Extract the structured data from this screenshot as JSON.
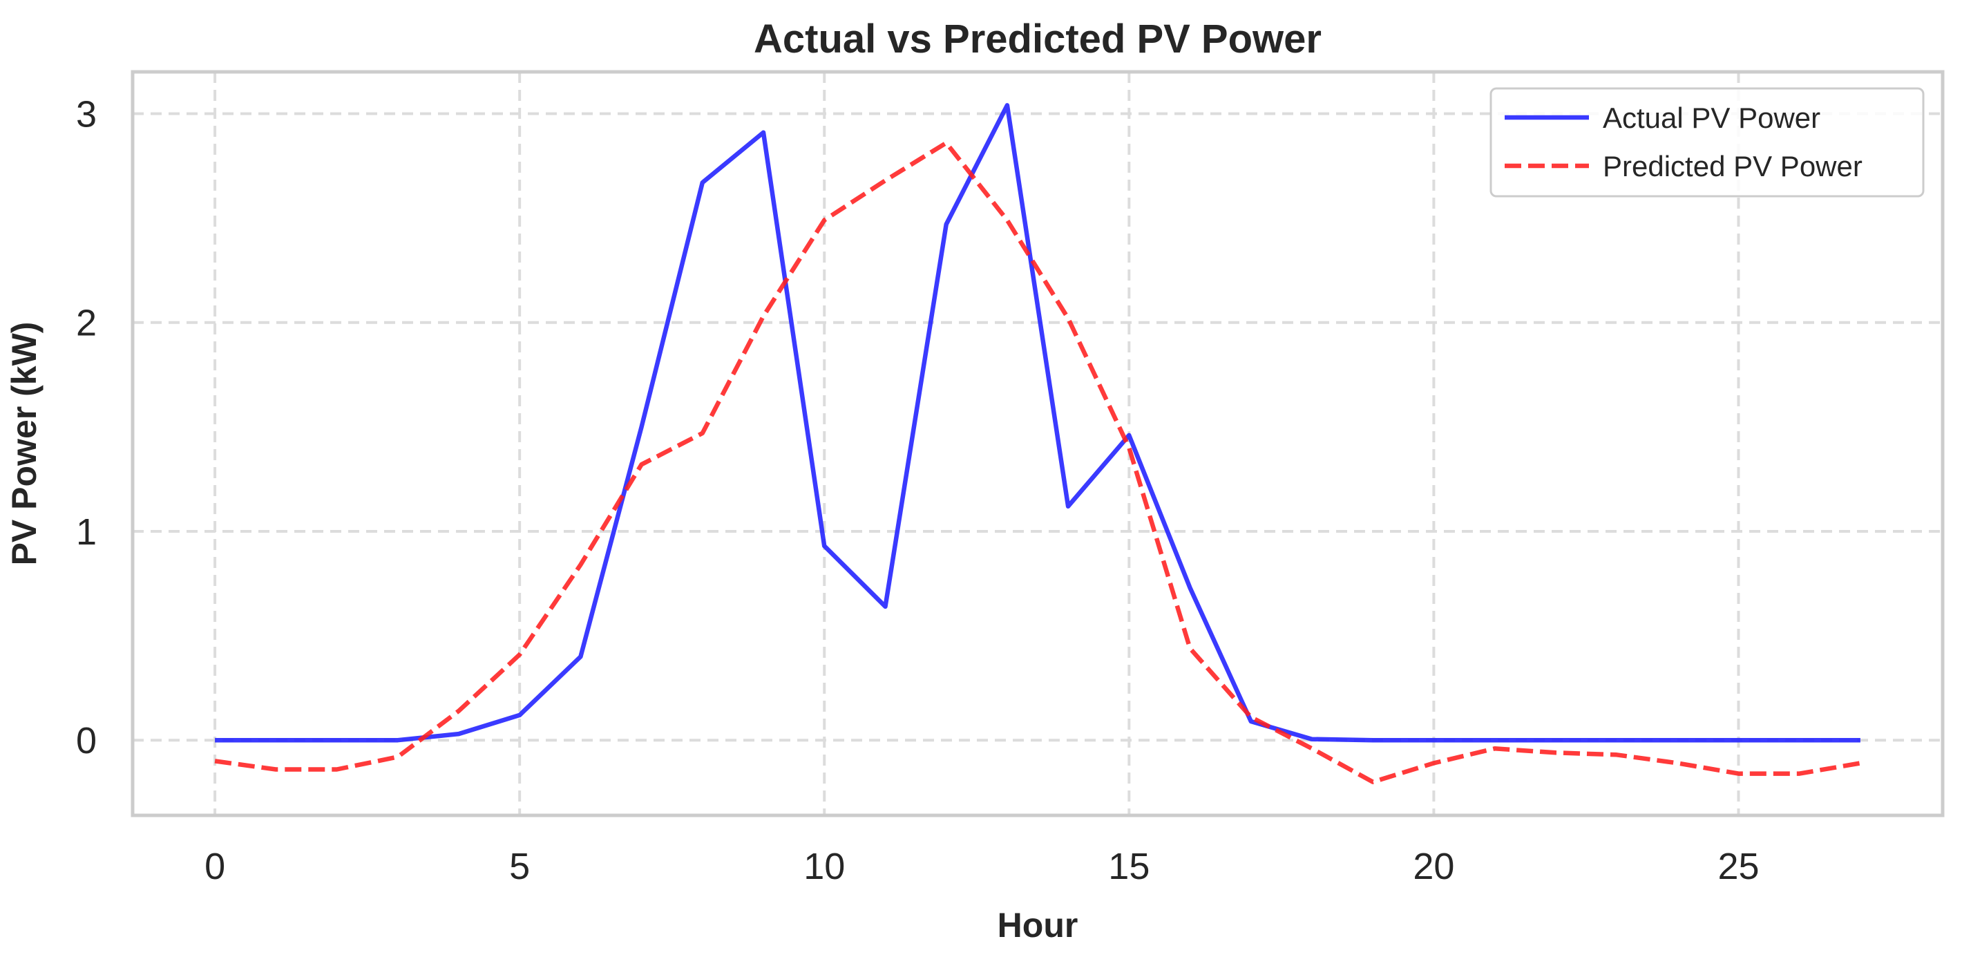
{
  "chart_data": {
    "type": "line",
    "title": "Actual vs Predicted PV Power",
    "xlabel": "Hour",
    "ylabel": "PV Power (kW)",
    "xlim": [
      -1.35,
      28.35
    ],
    "ylim": [
      -0.36,
      3.2
    ],
    "xticks": [
      0,
      5,
      10,
      15,
      20,
      25
    ],
    "yticks": [
      0,
      1,
      2,
      3
    ],
    "grid": true,
    "legend_position": "top-right",
    "x": [
      0,
      1,
      2,
      3,
      4,
      5,
      6,
      7,
      8,
      9,
      10,
      11,
      12,
      13,
      14,
      15,
      16,
      17,
      18,
      19,
      20,
      21,
      22,
      23,
      24,
      25,
      26,
      27
    ],
    "series": [
      {
        "name": "Actual PV Power",
        "color": "#1f1fff",
        "style": "solid",
        "values": [
          0,
          0,
          0,
          0,
          0.03,
          0.12,
          0.4,
          1.5,
          2.67,
          2.91,
          0.93,
          0.64,
          2.47,
          3.04,
          1.12,
          1.46,
          0.73,
          0.09,
          0.005,
          0,
          0,
          0,
          0,
          0,
          0,
          0,
          0,
          0
        ]
      },
      {
        "name": "Predicted PV Power",
        "color": "#ff1f1f",
        "style": "dashed",
        "values": [
          -0.1,
          -0.14,
          -0.14,
          -0.08,
          0.14,
          0.41,
          0.84,
          1.32,
          1.47,
          2.03,
          2.49,
          2.68,
          2.86,
          2.49,
          2.02,
          1.4,
          0.44,
          0.11,
          -0.04,
          -0.2,
          -0.11,
          -0.04,
          -0.06,
          -0.07,
          -0.11,
          -0.16,
          -0.16,
          -0.11
        ]
      }
    ]
  }
}
